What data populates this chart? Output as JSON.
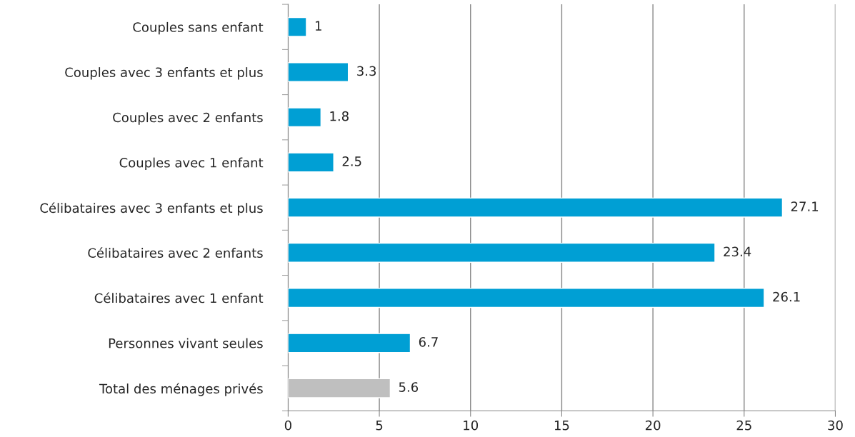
{
  "chart_data": {
    "type": "bar",
    "orientation": "horizontal",
    "categories": [
      "Couples sans enfant",
      "Couples avec 3 enfants et plus",
      "Couples avec 2 enfants",
      "Couples avec 1 enfant",
      "Célibataires avec 3 enfants et plus",
      "Célibataires avec 2 enfants",
      "Célibataires avec 1 enfant",
      "Personnes vivant seules",
      "Total des ménages privés"
    ],
    "values": [
      1,
      3.3,
      1.8,
      2.5,
      27.1,
      23.4,
      26.1,
      6.7,
      5.6
    ],
    "colors": [
      "#009fd4",
      "#009fd4",
      "#009fd4",
      "#009fd4",
      "#009fd4",
      "#009fd4",
      "#009fd4",
      "#009fd4",
      "#bfbfbf"
    ],
    "xlim": [
      0,
      30
    ],
    "xticks": [
      0,
      5,
      10,
      15,
      20,
      25,
      30
    ],
    "grid": "x",
    "data_labels": true
  }
}
